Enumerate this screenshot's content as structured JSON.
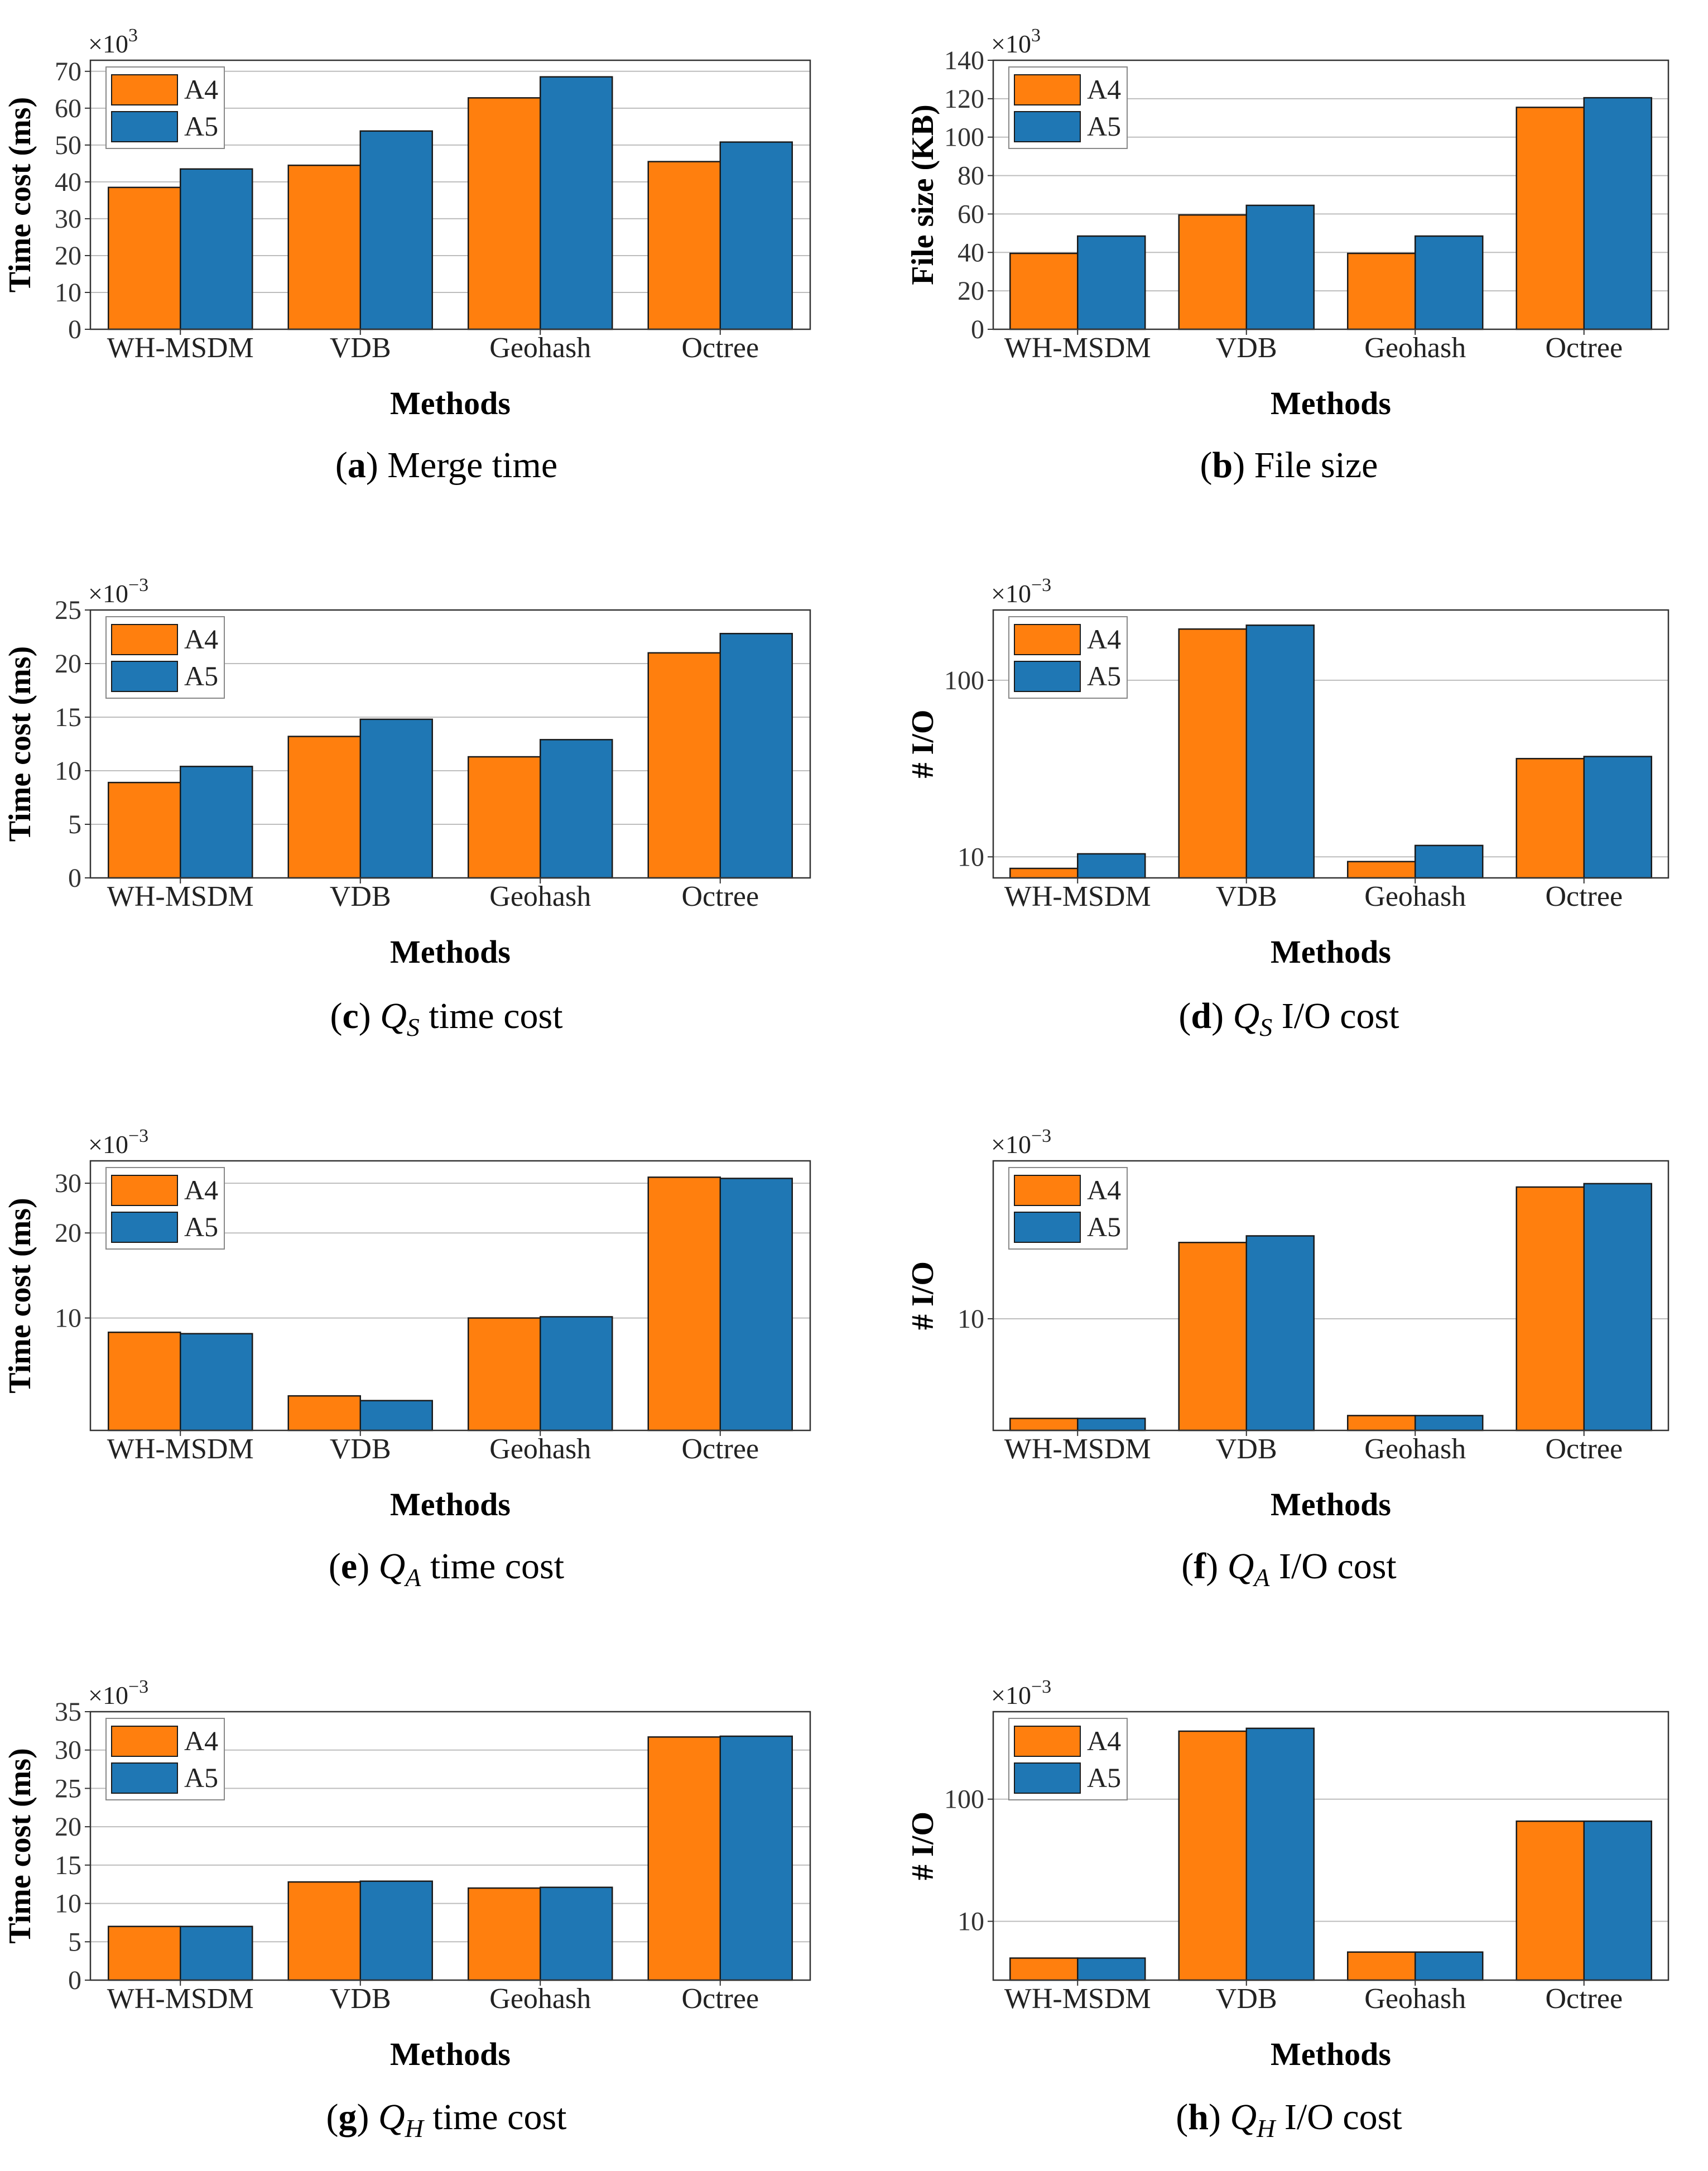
{
  "chart_data": [
    {
      "id": "a",
      "type": "bar",
      "scale": "linear",
      "categories": [
        "WH-MSDM",
        "VDB",
        "Geohash",
        "Octree"
      ],
      "series": [
        {
          "name": "A4",
          "color": "#ff7f0e",
          "values": [
            38.5,
            44.5,
            62.8,
            45.5
          ]
        },
        {
          "name": "A5",
          "color": "#1f77b4",
          "values": [
            43.5,
            53.8,
            68.5,
            50.8
          ]
        }
      ],
      "ylim": [
        0,
        73
      ],
      "yticks": [
        0,
        10,
        20,
        30,
        40,
        50,
        60,
        70
      ],
      "ylabel": "Time cost (ms)",
      "xlabel": "Methods",
      "exponent": {
        "base": "×10",
        "power": "3"
      },
      "caption": {
        "letter": "a",
        "text": "Merge time"
      }
    },
    {
      "id": "b",
      "type": "bar",
      "scale": "linear",
      "categories": [
        "WH-MSDM",
        "VDB",
        "Geohash",
        "Octree"
      ],
      "series": [
        {
          "name": "A4",
          "color": "#ff7f0e",
          "values": [
            39.5,
            59.5,
            39.5,
            115.5
          ]
        },
        {
          "name": "A5",
          "color": "#1f77b4",
          "values": [
            48.5,
            64.5,
            48.5,
            120.5
          ]
        }
      ],
      "ylim": [
        0,
        140
      ],
      "yticks": [
        0,
        20,
        40,
        60,
        80,
        100,
        120,
        140
      ],
      "ylabel": "File size (KB)",
      "xlabel": "Methods",
      "exponent": {
        "base": "×10",
        "power": "3"
      },
      "caption": {
        "letter": "b",
        "text": "File size"
      }
    },
    {
      "id": "c",
      "type": "bar",
      "scale": "linear",
      "categories": [
        "WH-MSDM",
        "VDB",
        "Geohash",
        "Octree"
      ],
      "series": [
        {
          "name": "A4",
          "color": "#ff7f0e",
          "values": [
            8.9,
            13.2,
            11.3,
            21.0
          ]
        },
        {
          "name": "A5",
          "color": "#1f77b4",
          "values": [
            10.4,
            14.8,
            12.9,
            22.8
          ]
        }
      ],
      "ylim": [
        0,
        25
      ],
      "yticks": [
        0,
        5,
        10,
        15,
        20,
        25
      ],
      "ylabel": "Time cost (ms)",
      "xlabel": "Methods",
      "exponent": {
        "base": "×10",
        "power": "−3"
      },
      "caption": {
        "letter": "c",
        "q": "Q",
        "sub": "S",
        "text": "time cost"
      }
    },
    {
      "id": "d",
      "type": "bar",
      "scale": "log",
      "categories": [
        "WH-MSDM",
        "VDB",
        "Geohash",
        "Octree"
      ],
      "series": [
        {
          "name": "A4",
          "color": "#ff7f0e",
          "values": [
            8.6,
            195,
            9.4,
            36
          ]
        },
        {
          "name": "A5",
          "color": "#1f77b4",
          "values": [
            10.4,
            205,
            11.6,
            37
          ]
        }
      ],
      "ylim": [
        7.6,
        250
      ],
      "yticks": [
        10,
        100
      ],
      "ylabel": "# I/O",
      "xlabel": "Methods",
      "exponent": {
        "base": "×10",
        "power": "−3"
      },
      "caption": {
        "letter": "d",
        "q": "Q",
        "sub": "S",
        "text": "I/O cost"
      }
    },
    {
      "id": "e",
      "type": "bar",
      "scale": "log",
      "categories": [
        "WH-MSDM",
        "VDB",
        "Geohash",
        "Octree"
      ],
      "series": [
        {
          "name": "A4",
          "color": "#ff7f0e",
          "values": [
            8.9,
            5.3,
            10.0,
            31.5
          ]
        },
        {
          "name": "A5",
          "color": "#1f77b4",
          "values": [
            8.8,
            5.1,
            10.1,
            31.2
          ]
        }
      ],
      "ylim": [
        4.0,
        36
      ],
      "yticks": [
        10,
        20,
        30
      ],
      "ylabel": "Time cost (ms)",
      "xlabel": "Methods",
      "exponent": {
        "base": "×10",
        "power": "−3"
      },
      "caption": {
        "letter": "e",
        "q": "Q",
        "sub": "A",
        "text": "time cost"
      }
    },
    {
      "id": "f",
      "type": "bar",
      "scale": "log",
      "categories": [
        "WH-MSDM",
        "VDB",
        "Geohash",
        "Octree"
      ],
      "series": [
        {
          "name": "A4",
          "color": "#ff7f0e",
          "values": [
            5.0,
            17.0,
            5.1,
            25.0
          ]
        },
        {
          "name": "A5",
          "color": "#1f77b4",
          "values": [
            5.0,
            17.8,
            5.1,
            25.6
          ]
        }
      ],
      "ylim": [
        4.6,
        30
      ],
      "yticks": [
        10
      ],
      "ylabel": "# I/O",
      "xlabel": "Methods",
      "exponent": {
        "base": "×10",
        "power": "−3"
      },
      "caption": {
        "letter": "f",
        "q": "Q",
        "sub": "A",
        "text": "I/O cost"
      }
    },
    {
      "id": "g",
      "type": "bar",
      "scale": "linear",
      "categories": [
        "WH-MSDM",
        "VDB",
        "Geohash",
        "Octree"
      ],
      "series": [
        {
          "name": "A4",
          "color": "#ff7f0e",
          "values": [
            7.0,
            12.8,
            12.0,
            31.7
          ]
        },
        {
          "name": "A5",
          "color": "#1f77b4",
          "values": [
            7.0,
            12.9,
            12.1,
            31.8
          ]
        }
      ],
      "ylim": [
        0,
        35
      ],
      "yticks": [
        0,
        5,
        10,
        15,
        20,
        25,
        30,
        35
      ],
      "ylabel": "Time cost (ms)",
      "xlabel": "Methods",
      "exponent": {
        "base": "×10",
        "power": "−3"
      },
      "caption": {
        "letter": "g",
        "q": "Q",
        "sub": "H",
        "text": "time cost"
      }
    },
    {
      "id": "h",
      "type": "bar",
      "scale": "log",
      "categories": [
        "WH-MSDM",
        "VDB",
        "Geohash",
        "Octree"
      ],
      "series": [
        {
          "name": "A4",
          "color": "#ff7f0e",
          "values": [
            5.0,
            360,
            5.6,
            66
          ]
        },
        {
          "name": "A5",
          "color": "#1f77b4",
          "values": [
            5.0,
            380,
            5.6,
            66
          ]
        }
      ],
      "ylim": [
        3.3,
        520
      ],
      "yticks": [
        10,
        100
      ],
      "ylabel": "# I/O",
      "xlabel": "Methods",
      "exponent": {
        "base": "×10",
        "power": "−3"
      },
      "caption": {
        "letter": "h",
        "q": "Q",
        "sub": "H",
        "text": "I/O cost"
      }
    }
  ]
}
